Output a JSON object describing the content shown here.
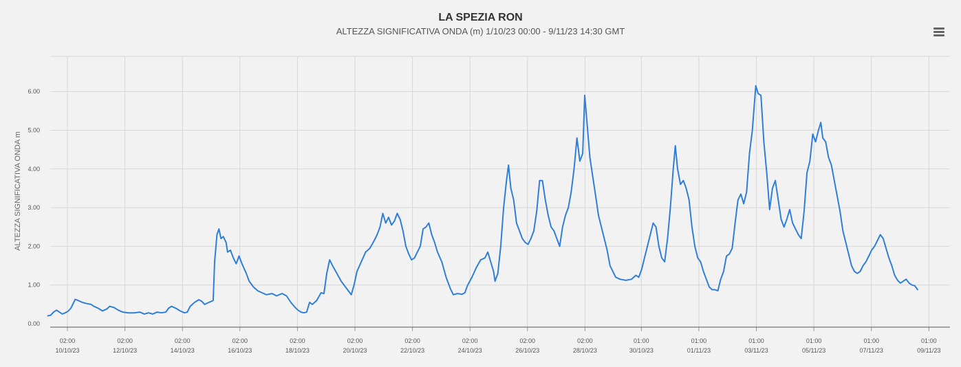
{
  "header": {
    "title": "LA SPEZIA RON",
    "subtitle": "ALTEZZA SIGNIFICATIVA ONDA (m)   1/10/23 00:00 - 9/11/23 14:30 GMT"
  },
  "menu": {
    "icon": "hamburger-menu-icon"
  },
  "colors": {
    "series": "#2f7ed8",
    "grid": "#d6d6d6",
    "background": "#f2f2f2"
  },
  "chart_data": {
    "type": "line",
    "title": "LA SPEZIA RON",
    "ylabel": "ALTEZZA SIGNIFICATIVA ONDA m",
    "ylim": [
      0,
      7
    ],
    "yticks": [
      "0.00",
      "1.00",
      "2.00",
      "3.00",
      "4.00",
      "5.00",
      "6.00"
    ],
    "xlim_days": [
      9.37,
      39.66
    ],
    "xticks": [
      {
        "d": 10.08,
        "time": "02:00",
        "date": "10/10/23"
      },
      {
        "d": 12.08,
        "time": "02:00",
        "date": "12/10/23"
      },
      {
        "d": 14.08,
        "time": "02:00",
        "date": "14/10/23"
      },
      {
        "d": 16.08,
        "time": "02:00",
        "date": "16/10/23"
      },
      {
        "d": 18.08,
        "time": "02:00",
        "date": "18/10/23"
      },
      {
        "d": 20.08,
        "time": "02:00",
        "date": "20/10/23"
      },
      {
        "d": 22.08,
        "time": "02:00",
        "date": "22/10/23"
      },
      {
        "d": 24.08,
        "time": "02:00",
        "date": "24/10/23"
      },
      {
        "d": 26.08,
        "time": "02:00",
        "date": "26/10/23"
      },
      {
        "d": 28.08,
        "time": "02:00",
        "date": "28/10/23"
      },
      {
        "d": 30.04,
        "time": "01:00",
        "date": "30/10/23"
      },
      {
        "d": 32.04,
        "time": "01:00",
        "date": "01/11/23"
      },
      {
        "d": 34.04,
        "time": "01:00",
        "date": "03/11/23"
      },
      {
        "d": 36.04,
        "time": "01:00",
        "date": "05/11/23"
      },
      {
        "d": 38.04,
        "time": "01:00",
        "date": "07/11/23"
      },
      {
        "d": 40.04,
        "time": "01:00",
        "date": "09/11/23"
      }
    ],
    "grid": true,
    "series": [
      {
        "values": [
          [
            9.38,
            0.2
          ],
          [
            9.5,
            0.22
          ],
          [
            9.6,
            0.3
          ],
          [
            9.7,
            0.35
          ],
          [
            9.8,
            0.3
          ],
          [
            9.9,
            0.25
          ],
          [
            10.0,
            0.28
          ],
          [
            10.1,
            0.32
          ],
          [
            10.2,
            0.4
          ],
          [
            10.3,
            0.55
          ],
          [
            10.35,
            0.63
          ],
          [
            10.45,
            0.6
          ],
          [
            10.6,
            0.55
          ],
          [
            10.75,
            0.52
          ],
          [
            10.9,
            0.5
          ],
          [
            11.0,
            0.45
          ],
          [
            11.15,
            0.4
          ],
          [
            11.3,
            0.33
          ],
          [
            11.45,
            0.38
          ],
          [
            11.55,
            0.45
          ],
          [
            11.7,
            0.42
          ],
          [
            11.85,
            0.35
          ],
          [
            12.0,
            0.3
          ],
          [
            12.2,
            0.28
          ],
          [
            12.4,
            0.28
          ],
          [
            12.6,
            0.3
          ],
          [
            12.75,
            0.25
          ],
          [
            12.9,
            0.28
          ],
          [
            13.05,
            0.25
          ],
          [
            13.2,
            0.3
          ],
          [
            13.35,
            0.28
          ],
          [
            13.5,
            0.3
          ],
          [
            13.6,
            0.4
          ],
          [
            13.7,
            0.45
          ],
          [
            13.85,
            0.4
          ],
          [
            14.0,
            0.33
          ],
          [
            14.15,
            0.28
          ],
          [
            14.25,
            0.3
          ],
          [
            14.35,
            0.45
          ],
          [
            14.5,
            0.55
          ],
          [
            14.65,
            0.62
          ],
          [
            14.75,
            0.58
          ],
          [
            14.85,
            0.5
          ],
          [
            15.0,
            0.55
          ],
          [
            15.15,
            0.6
          ],
          [
            15.2,
            1.6
          ],
          [
            15.28,
            2.3
          ],
          [
            15.35,
            2.45
          ],
          [
            15.42,
            2.2
          ],
          [
            15.5,
            2.25
          ],
          [
            15.6,
            2.1
          ],
          [
            15.65,
            1.85
          ],
          [
            15.75,
            1.9
          ],
          [
            15.85,
            1.7
          ],
          [
            15.95,
            1.55
          ],
          [
            16.05,
            1.75
          ],
          [
            16.15,
            1.55
          ],
          [
            16.3,
            1.3
          ],
          [
            16.4,
            1.1
          ],
          [
            16.55,
            0.95
          ],
          [
            16.7,
            0.85
          ],
          [
            16.85,
            0.8
          ],
          [
            17.0,
            0.75
          ],
          [
            17.2,
            0.78
          ],
          [
            17.35,
            0.72
          ],
          [
            17.55,
            0.78
          ],
          [
            17.7,
            0.72
          ],
          [
            17.85,
            0.55
          ],
          [
            18.0,
            0.42
          ],
          [
            18.1,
            0.35
          ],
          [
            18.2,
            0.3
          ],
          [
            18.3,
            0.28
          ],
          [
            18.4,
            0.3
          ],
          [
            18.5,
            0.55
          ],
          [
            18.6,
            0.5
          ],
          [
            18.75,
            0.6
          ],
          [
            18.9,
            0.8
          ],
          [
            19.0,
            0.78
          ],
          [
            19.1,
            1.3
          ],
          [
            19.2,
            1.65
          ],
          [
            19.3,
            1.5
          ],
          [
            19.45,
            1.3
          ],
          [
            19.6,
            1.1
          ],
          [
            19.75,
            0.95
          ],
          [
            19.85,
            0.85
          ],
          [
            19.95,
            0.75
          ],
          [
            20.05,
            1.0
          ],
          [
            20.15,
            1.35
          ],
          [
            20.3,
            1.6
          ],
          [
            20.45,
            1.85
          ],
          [
            20.6,
            1.95
          ],
          [
            20.75,
            2.15
          ],
          [
            20.85,
            2.3
          ],
          [
            20.95,
            2.5
          ],
          [
            21.05,
            2.85
          ],
          [
            21.15,
            2.6
          ],
          [
            21.25,
            2.75
          ],
          [
            21.35,
            2.55
          ],
          [
            21.45,
            2.65
          ],
          [
            21.55,
            2.85
          ],
          [
            21.65,
            2.7
          ],
          [
            21.75,
            2.4
          ],
          [
            21.85,
            2.0
          ],
          [
            21.95,
            1.8
          ],
          [
            22.05,
            1.65
          ],
          [
            22.15,
            1.7
          ],
          [
            22.25,
            1.85
          ],
          [
            22.35,
            2.0
          ],
          [
            22.45,
            2.45
          ],
          [
            22.55,
            2.5
          ],
          [
            22.65,
            2.6
          ],
          [
            22.75,
            2.3
          ],
          [
            22.85,
            2.1
          ],
          [
            22.95,
            1.85
          ],
          [
            23.1,
            1.6
          ],
          [
            23.25,
            1.2
          ],
          [
            23.4,
            0.9
          ],
          [
            23.5,
            0.75
          ],
          [
            23.65,
            0.78
          ],
          [
            23.8,
            0.76
          ],
          [
            23.9,
            0.8
          ],
          [
            24.0,
            1.0
          ],
          [
            24.15,
            1.2
          ],
          [
            24.3,
            1.45
          ],
          [
            24.45,
            1.65
          ],
          [
            24.6,
            1.7
          ],
          [
            24.7,
            1.85
          ],
          [
            24.8,
            1.6
          ],
          [
            24.9,
            1.35
          ],
          [
            24.95,
            1.1
          ],
          [
            25.05,
            1.3
          ],
          [
            25.15,
            2.0
          ],
          [
            25.25,
            3.0
          ],
          [
            25.35,
            3.7
          ],
          [
            25.42,
            4.1
          ],
          [
            25.5,
            3.5
          ],
          [
            25.6,
            3.2
          ],
          [
            25.7,
            2.6
          ],
          [
            25.8,
            2.4
          ],
          [
            25.9,
            2.2
          ],
          [
            26.0,
            2.1
          ],
          [
            26.1,
            2.05
          ],
          [
            26.2,
            2.2
          ],
          [
            26.3,
            2.4
          ],
          [
            26.4,
            2.9
          ],
          [
            26.5,
            3.7
          ],
          [
            26.6,
            3.7
          ],
          [
            26.7,
            3.2
          ],
          [
            26.8,
            2.8
          ],
          [
            26.9,
            2.5
          ],
          [
            27.0,
            2.4
          ],
          [
            27.1,
            2.2
          ],
          [
            27.2,
            2.0
          ],
          [
            27.3,
            2.5
          ],
          [
            27.4,
            2.8
          ],
          [
            27.5,
            3.0
          ],
          [
            27.6,
            3.4
          ],
          [
            27.7,
            4.0
          ],
          [
            27.8,
            4.8
          ],
          [
            27.9,
            4.2
          ],
          [
            28.0,
            4.4
          ],
          [
            28.07,
            5.9
          ],
          [
            28.15,
            5.2
          ],
          [
            28.25,
            4.3
          ],
          [
            28.35,
            3.8
          ],
          [
            28.45,
            3.3
          ],
          [
            28.55,
            2.8
          ],
          [
            28.65,
            2.5
          ],
          [
            28.75,
            2.2
          ],
          [
            28.85,
            1.9
          ],
          [
            28.95,
            1.5
          ],
          [
            29.05,
            1.35
          ],
          [
            29.15,
            1.2
          ],
          [
            29.3,
            1.15
          ],
          [
            29.5,
            1.12
          ],
          [
            29.7,
            1.15
          ],
          [
            29.85,
            1.25
          ],
          [
            29.95,
            1.2
          ],
          [
            30.05,
            1.4
          ],
          [
            30.15,
            1.7
          ],
          [
            30.25,
            2.0
          ],
          [
            30.35,
            2.3
          ],
          [
            30.45,
            2.6
          ],
          [
            30.55,
            2.5
          ],
          [
            30.65,
            2.0
          ],
          [
            30.75,
            1.7
          ],
          [
            30.85,
            1.6
          ],
          [
            30.95,
            2.2
          ],
          [
            31.05,
            3.0
          ],
          [
            31.15,
            4.0
          ],
          [
            31.22,
            4.6
          ],
          [
            31.3,
            4.0
          ],
          [
            31.4,
            3.6
          ],
          [
            31.5,
            3.7
          ],
          [
            31.6,
            3.5
          ],
          [
            31.7,
            3.2
          ],
          [
            31.8,
            2.5
          ],
          [
            31.9,
            2.0
          ],
          [
            32.0,
            1.7
          ],
          [
            32.1,
            1.6
          ],
          [
            32.2,
            1.35
          ],
          [
            32.3,
            1.15
          ],
          [
            32.4,
            0.95
          ],
          [
            32.5,
            0.88
          ],
          [
            32.6,
            0.88
          ],
          [
            32.7,
            0.85
          ],
          [
            32.8,
            1.15
          ],
          [
            32.9,
            1.35
          ],
          [
            33.0,
            1.75
          ],
          [
            33.1,
            1.8
          ],
          [
            33.2,
            1.95
          ],
          [
            33.3,
            2.6
          ],
          [
            33.4,
            3.2
          ],
          [
            33.5,
            3.35
          ],
          [
            33.6,
            3.1
          ],
          [
            33.7,
            3.4
          ],
          [
            33.8,
            4.4
          ],
          [
            33.9,
            5.0
          ],
          [
            33.95,
            5.5
          ],
          [
            34.02,
            6.15
          ],
          [
            34.1,
            5.95
          ],
          [
            34.2,
            5.9
          ],
          [
            34.3,
            4.7
          ],
          [
            34.4,
            3.9
          ],
          [
            34.5,
            2.95
          ],
          [
            34.6,
            3.5
          ],
          [
            34.7,
            3.7
          ],
          [
            34.8,
            3.2
          ],
          [
            34.9,
            2.7
          ],
          [
            35.0,
            2.5
          ],
          [
            35.1,
            2.7
          ],
          [
            35.2,
            2.95
          ],
          [
            35.3,
            2.6
          ],
          [
            35.4,
            2.45
          ],
          [
            35.5,
            2.3
          ],
          [
            35.6,
            2.2
          ],
          [
            35.7,
            2.9
          ],
          [
            35.8,
            3.9
          ],
          [
            35.9,
            4.2
          ],
          [
            36.0,
            4.9
          ],
          [
            36.1,
            4.7
          ],
          [
            36.2,
            5.0
          ],
          [
            36.28,
            5.2
          ],
          [
            36.35,
            4.8
          ],
          [
            36.45,
            4.7
          ],
          [
            36.55,
            4.3
          ],
          [
            36.65,
            4.1
          ],
          [
            36.75,
            3.7
          ],
          [
            36.85,
            3.3
          ],
          [
            36.95,
            2.9
          ],
          [
            37.05,
            2.4
          ],
          [
            37.15,
            2.1
          ],
          [
            37.25,
            1.8
          ],
          [
            37.35,
            1.5
          ],
          [
            37.45,
            1.35
          ],
          [
            37.55,
            1.3
          ],
          [
            37.65,
            1.35
          ],
          [
            37.75,
            1.5
          ],
          [
            37.85,
            1.6
          ],
          [
            37.95,
            1.75
          ],
          [
            38.05,
            1.9
          ],
          [
            38.15,
            2.0
          ],
          [
            38.25,
            2.15
          ],
          [
            38.35,
            2.3
          ],
          [
            38.45,
            2.2
          ],
          [
            38.55,
            1.95
          ],
          [
            38.65,
            1.7
          ],
          [
            38.75,
            1.5
          ],
          [
            38.85,
            1.25
          ],
          [
            38.95,
            1.12
          ],
          [
            39.05,
            1.05
          ],
          [
            39.15,
            1.1
          ],
          [
            39.25,
            1.15
          ],
          [
            39.35,
            1.05
          ],
          [
            39.45,
            1.0
          ],
          [
            39.55,
            0.98
          ],
          [
            39.66,
            0.87
          ]
        ]
      }
    ]
  }
}
